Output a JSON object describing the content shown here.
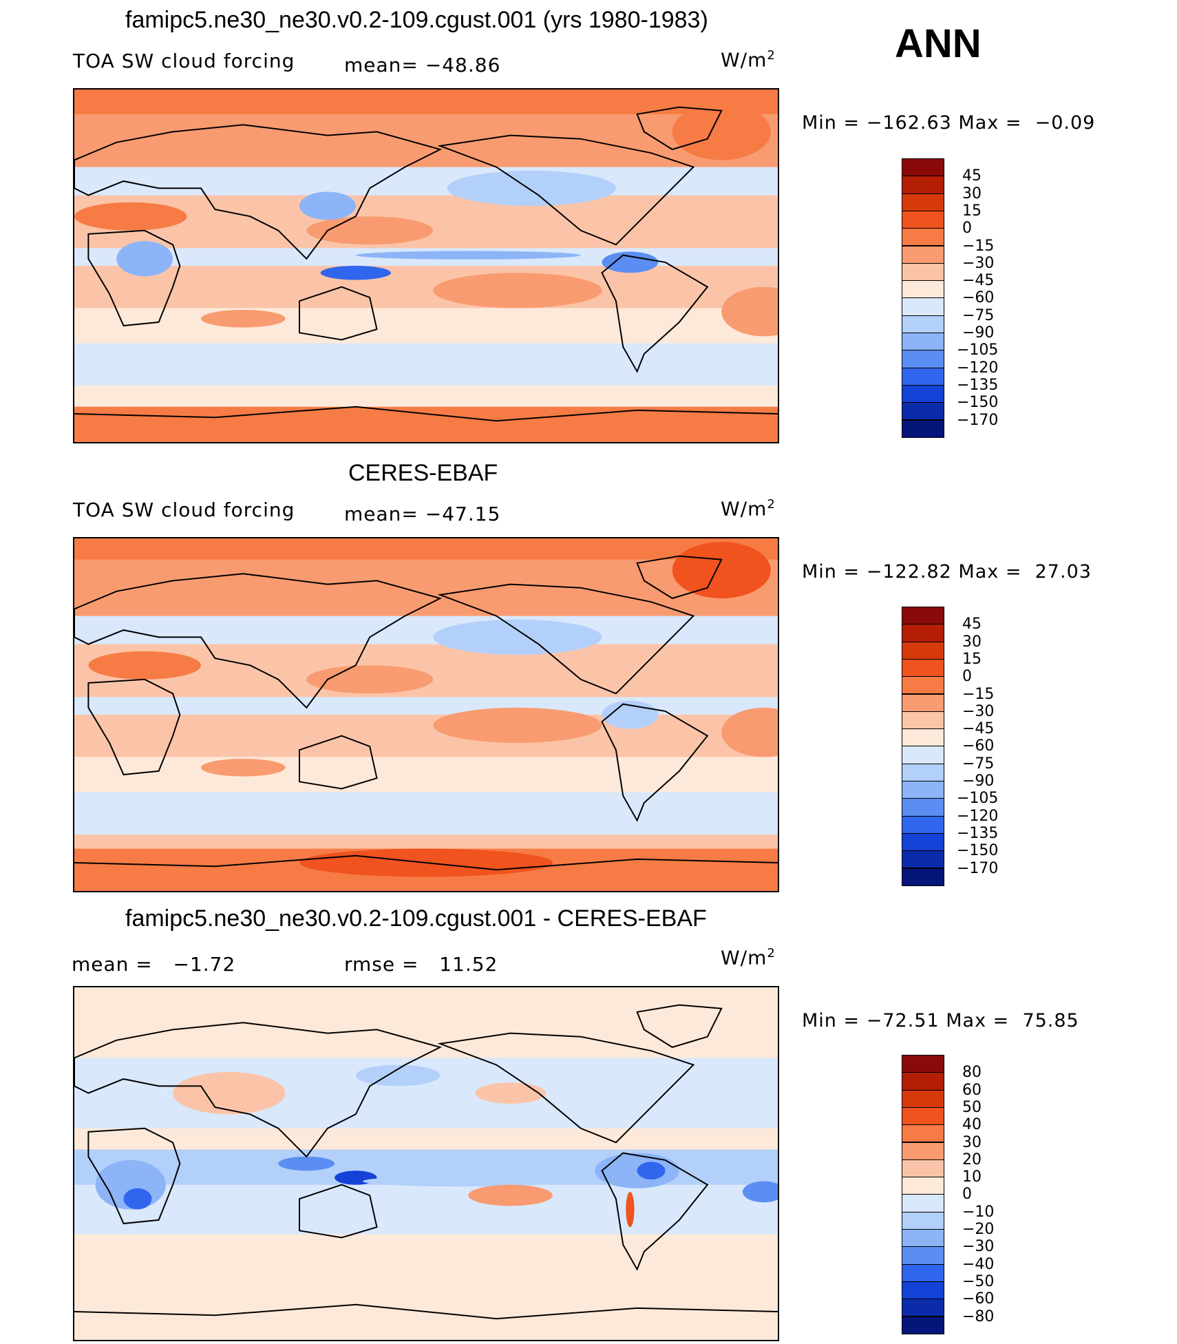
{
  "season": "ANN",
  "panels": [
    {
      "title": "famipc5.ne30_ne30.v0.2-109.cgust.001 (yrs 1980-1983)",
      "left_label": "TOA SW cloud forcing",
      "mid_label": "mean=",
      "mid_value": "−48.86",
      "units": "W/m",
      "units_exp": "2",
      "min_label": "Min",
      "min_value": "−162.63",
      "max_label": "Max",
      "max_value": "−0.09",
      "map_variant": "model"
    },
    {
      "title": "CERES-EBAF",
      "left_label": "TOA SW cloud forcing",
      "mid_label": "mean=",
      "mid_value": "−47.15",
      "units": "W/m",
      "units_exp": "2",
      "min_label": "Min",
      "min_value": "−122.82",
      "max_label": "Max",
      "max_value": "27.03",
      "map_variant": "obs"
    },
    {
      "title": "famipc5.ne30_ne30.v0.2-109.cgust.001 - CERES-EBAF",
      "left_label": "mean =",
      "left_value": "−1.72",
      "mid_label": "rmse =",
      "mid_value": "11.52",
      "units": "W/m",
      "units_exp": "2",
      "min_label": "Min",
      "min_value": "−72.51",
      "max_label": "Max",
      "max_value": "75.85",
      "map_variant": "diff"
    }
  ],
  "colorbars": {
    "field": {
      "labels": [
        "45",
        "30",
        "15",
        "0",
        "−15",
        "−30",
        "−45",
        "−60",
        "−75",
        "−90",
        "−105",
        "−120",
        "−135",
        "−150",
        "−170"
      ],
      "colors": [
        "#8a0a0a",
        "#b31e05",
        "#d63a0a",
        "#f0531e",
        "#f77b45",
        "#f99b70",
        "#fbc4a8",
        "#fde9d9",
        "#d9e8fb",
        "#b3d0fa",
        "#8cb4f7",
        "#5b8ef2",
        "#3065ee",
        "#1441d6",
        "#0a2cab",
        "#06157a"
      ]
    },
    "diff": {
      "labels": [
        "80",
        "60",
        "50",
        "40",
        "30",
        "20",
        "10",
        "0",
        "−10",
        "−20",
        "−30",
        "−40",
        "−50",
        "−60",
        "−80"
      ],
      "colors": [
        "#8a0a0a",
        "#b31e05",
        "#d63a0a",
        "#f0531e",
        "#f77b45",
        "#f99b70",
        "#fbc4a8",
        "#fde9d9",
        "#d9e8fb",
        "#b3d0fa",
        "#8cb4f7",
        "#5b8ef2",
        "#3065ee",
        "#1441d6",
        "#0a2cab",
        "#06157a"
      ]
    }
  },
  "chart_data": [
    {
      "type": "heatmap",
      "title": "famipc5.ne30_ne30.v0.2-109.cgust.001 (yrs 1980-1983)",
      "variable": "TOA SW cloud forcing",
      "units": "W/m2",
      "mean": -48.86,
      "min": -162.63,
      "max": -0.09,
      "contour_levels": [
        -170,
        -150,
        -135,
        -120,
        -105,
        -90,
        -75,
        -60,
        -45,
        -30,
        -15,
        0,
        15,
        30,
        45
      ]
    },
    {
      "type": "heatmap",
      "title": "CERES-EBAF",
      "variable": "TOA SW cloud forcing",
      "units": "W/m2",
      "mean": -47.15,
      "min": -122.82,
      "max": 27.03,
      "contour_levels": [
        -170,
        -150,
        -135,
        -120,
        -105,
        -90,
        -75,
        -60,
        -45,
        -30,
        -15,
        0,
        15,
        30,
        45
      ]
    },
    {
      "type": "heatmap",
      "title": "famipc5.ne30_ne30.v0.2-109.cgust.001 - CERES-EBAF",
      "units": "W/m2",
      "mean": -1.72,
      "rmse": 11.52,
      "min": -72.51,
      "max": 75.85,
      "contour_levels": [
        -80,
        -60,
        -50,
        -40,
        -30,
        -20,
        -10,
        0,
        10,
        20,
        30,
        40,
        50,
        60,
        80
      ]
    }
  ]
}
